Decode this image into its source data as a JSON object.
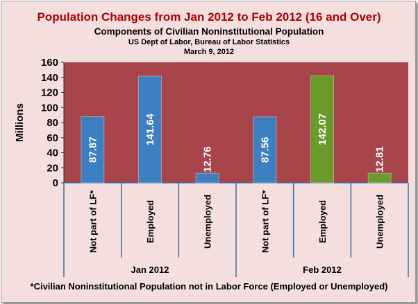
{
  "chart_data": {
    "type": "bar",
    "title": "Population Changes  from Jan 2012 to Feb 2012 (16 and Over)",
    "subtitle": "Components of Civilian Noninstitutional Population",
    "source": "US Dept of Labor, Bureau of Labor Statistics",
    "date": "March 9, 2012",
    "ylabel": "Millions",
    "ylim": [
      0,
      160
    ],
    "yticks": [
      0,
      20,
      40,
      60,
      80,
      100,
      120,
      140,
      160
    ],
    "groups": [
      {
        "label": "Jan 2012",
        "categories": [
          "Not part of LF*",
          "Employed",
          "Unemployed"
        ],
        "values": [
          87.87,
          141.64,
          12.76
        ],
        "value_labels": [
          "87.87",
          "141.64",
          "12.76"
        ]
      },
      {
        "label": "Feb 2012",
        "categories": [
          "Not part of LF*",
          "Employed",
          "Unemployed"
        ],
        "values": [
          87.56,
          142.07,
          12.81
        ],
        "value_labels": [
          "87.56",
          "142.07",
          "12.81"
        ]
      }
    ],
    "footnote": "*Civilian Noninstitutional Population not in Labor Force (Employed or Unemployed)",
    "grid": false,
    "colors": {
      "plot_bg": "#a8454b",
      "bar_default": "#3d7fc1",
      "bar_feb_employed": "#6b9a2c",
      "bar_feb_unemployed": "#6b9a2c",
      "chart_bg": "#f4dede",
      "title": "#b00000"
    }
  }
}
